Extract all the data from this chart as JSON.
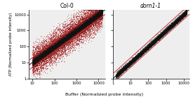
{
  "panel1_title": "Col-0",
  "panel2_title": "dorn1-1",
  "xlabel": "Buffer (Normalized probe intensity)",
  "ylabel": "ATP (Normalized probe intensity)",
  "panel1_xlim": [
    7,
    20000
  ],
  "panel2_xlim": [
    1,
    20000
  ],
  "ylim": [
    1,
    20000
  ],
  "xticks_p1": [
    10,
    100,
    1000,
    10000
  ],
  "xticks_p2": [
    1,
    10,
    100,
    1000,
    10000
  ],
  "yticks": [
    1,
    10,
    100,
    1000,
    10000
  ],
  "scatter_red": "#cc3333",
  "scatter_dark": "#333333",
  "scatter_gray": "#888888",
  "line_black": "#111111",
  "line_red": "#cc3333",
  "upper_fold": 2.0,
  "lower_fold": 0.5,
  "n_points": 22000,
  "seed": 7
}
